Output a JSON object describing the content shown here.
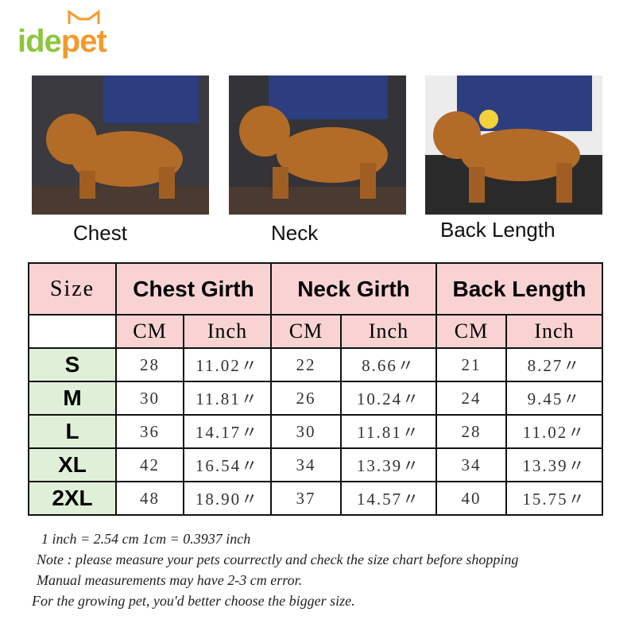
{
  "logo": {
    "text": "idepet",
    "colors": {
      "green": "#8cc63f",
      "orange": "#f39a2b"
    }
  },
  "photos": [
    {
      "caption": "Chest"
    },
    {
      "caption": "Neck"
    },
    {
      "caption": "Back Length"
    }
  ],
  "table": {
    "size_header": "Size",
    "groups": [
      "Chest Girth",
      "Neck Girth",
      "Back Length"
    ],
    "units": [
      "CM",
      "Inch",
      "CM",
      "Inch",
      "CM",
      "Inch"
    ],
    "rows": [
      {
        "size": "S",
        "values": [
          "28",
          "11.02〃",
          "22",
          "8.66〃",
          "21",
          "8.27〃"
        ]
      },
      {
        "size": "M",
        "values": [
          "30",
          "11.81〃",
          "26",
          "10.24〃",
          "24",
          "9.45〃"
        ]
      },
      {
        "size": "L",
        "values": [
          "36",
          "14.17〃",
          "30",
          "11.81〃",
          "28",
          "11.02〃"
        ]
      },
      {
        "size": "XL",
        "values": [
          "42",
          "16.54〃",
          "34",
          "13.39〃",
          "34",
          "13.39〃"
        ]
      },
      {
        "size": "2XL",
        "values": [
          "48",
          "18.90〃",
          "37",
          "14.57〃",
          "40",
          "15.75〃"
        ]
      }
    ],
    "colors": {
      "header": "#f9d3d3",
      "size_col": "#e0f0d8"
    }
  },
  "notes": [
    "1 inch = 2.54 cm    1cm = 0.3937 inch",
    "Note : please measure your pets courrectly and check the size chart before shopping",
    "Manual measurements may have 2-3 cm error.",
    "For the growing pet, you'd better choose the bigger size."
  ]
}
